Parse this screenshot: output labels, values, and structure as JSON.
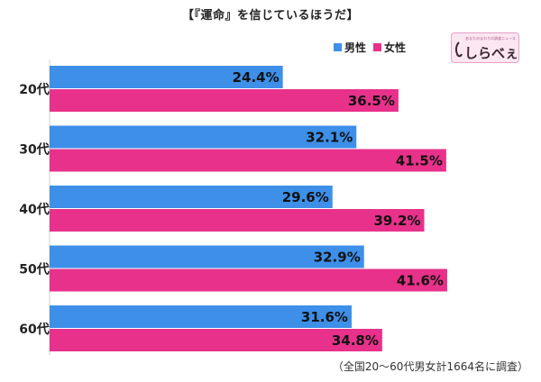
{
  "title": "【『運命』を信じているほうだ】",
  "legend": {
    "male_label": "男性",
    "female_label": "女性"
  },
  "logo": {
    "text": "しらべぇ",
    "tagline": "あなたのまわりの調査ニュース"
  },
  "footnote": "（全国20～60代男女計1664名に調査）",
  "colors": {
    "male": "#3d8fe8",
    "female": "#e8318a"
  },
  "chart_data": {
    "type": "bar",
    "orientation": "horizontal",
    "categories": [
      "20代",
      "30代",
      "40代",
      "50代",
      "60代"
    ],
    "series": [
      {
        "name": "男性",
        "values": [
          24.4,
          32.1,
          29.6,
          32.9,
          31.6
        ],
        "labels": [
          "24.4%",
          "32.1%",
          "29.6%",
          "32.9%",
          "31.6%"
        ]
      },
      {
        "name": "女性",
        "values": [
          36.5,
          41.5,
          39.2,
          41.6,
          34.8
        ],
        "labels": [
          "36.5%",
          "41.5%",
          "39.2%",
          "41.6%",
          "34.8%"
        ]
      }
    ],
    "xlim": [
      0,
      50
    ],
    "legend_position": "top-right",
    "grid": false
  }
}
